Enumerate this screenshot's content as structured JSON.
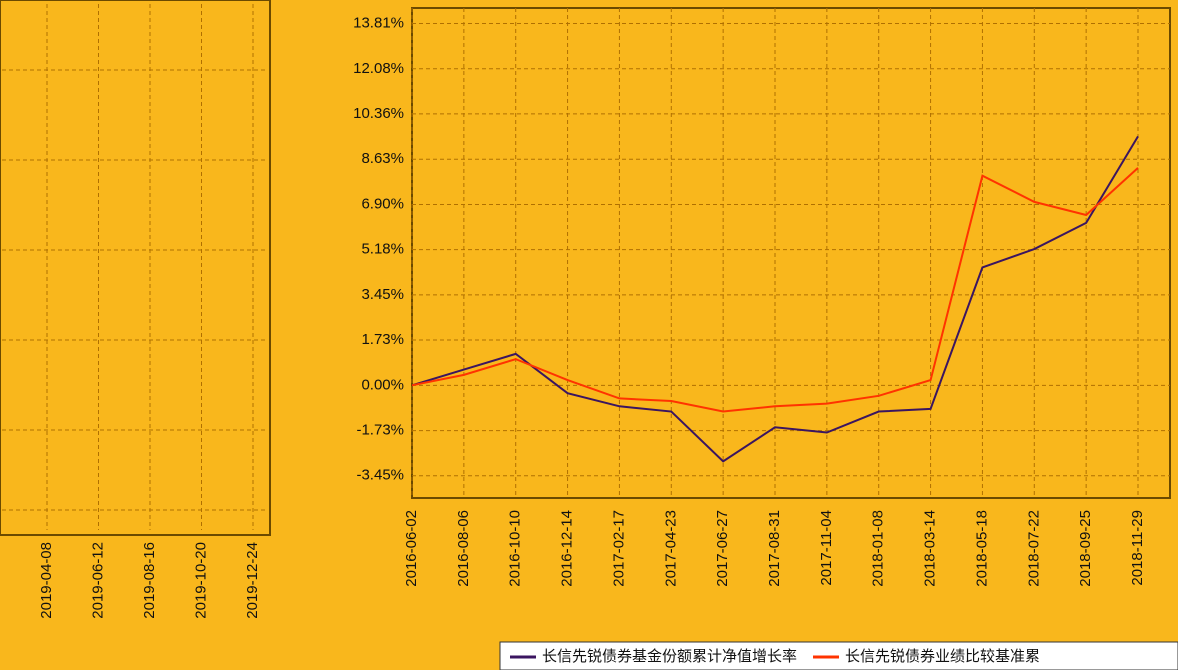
{
  "chart_data": [
    {
      "type": "line",
      "categories": [
        "2016-06-02",
        "2016-08-06",
        "2016-10-10",
        "2016-12-14",
        "2017-02-17",
        "2017-04-23",
        "2017-06-27",
        "2017-08-31",
        "2017-11-04",
        "2018-01-08",
        "2018-03-14",
        "2018-05-18",
        "2018-07-22",
        "2018-09-25",
        "2018-11-29"
      ],
      "series": [
        {
          "name": "长信先锐债券基金份额累计净值增长率",
          "color": "#3b1560",
          "values": [
            0.0,
            0.6,
            1.2,
            -0.3,
            -0.8,
            -1.0,
            -2.9,
            -1.6,
            -1.8,
            -1.0,
            -0.9,
            4.5,
            5.2,
            6.2,
            9.5
          ]
        },
        {
          "name": "长信先锐债券业绩比较基准累",
          "color": "#ff3300",
          "values": [
            0.0,
            0.4,
            1.0,
            0.2,
            -0.5,
            -0.6,
            -1.0,
            -0.8,
            -0.7,
            -0.4,
            0.2,
            8.0,
            7.0,
            6.5,
            8.3
          ]
        }
      ],
      "ylim": [
        -4.3,
        14.4
      ],
      "yticks": [
        {
          "value": 13.81,
          "label": "13.81%"
        },
        {
          "value": 12.08,
          "label": "12.08%"
        },
        {
          "value": 10.36,
          "label": "10.36%"
        },
        {
          "value": 8.63,
          "label": "8.63%"
        },
        {
          "value": 6.9,
          "label": "6.90%"
        },
        {
          "value": 5.18,
          "label": "5.18%"
        },
        {
          "value": 3.45,
          "label": "3.45%"
        },
        {
          "value": 1.73,
          "label": "1.73%"
        },
        {
          "value": 0.0,
          "label": "0.00%"
        },
        {
          "value": -1.73,
          "label": "-1.73%"
        },
        {
          "value": -3.45,
          "label": "-3.45%"
        }
      ],
      "grid": true
    },
    {
      "type": "line",
      "categories": [
        "2019-04-08",
        "2019-06-12",
        "2019-08-16",
        "2019-10-20",
        "2019-12-24"
      ],
      "grid": true
    }
  ]
}
